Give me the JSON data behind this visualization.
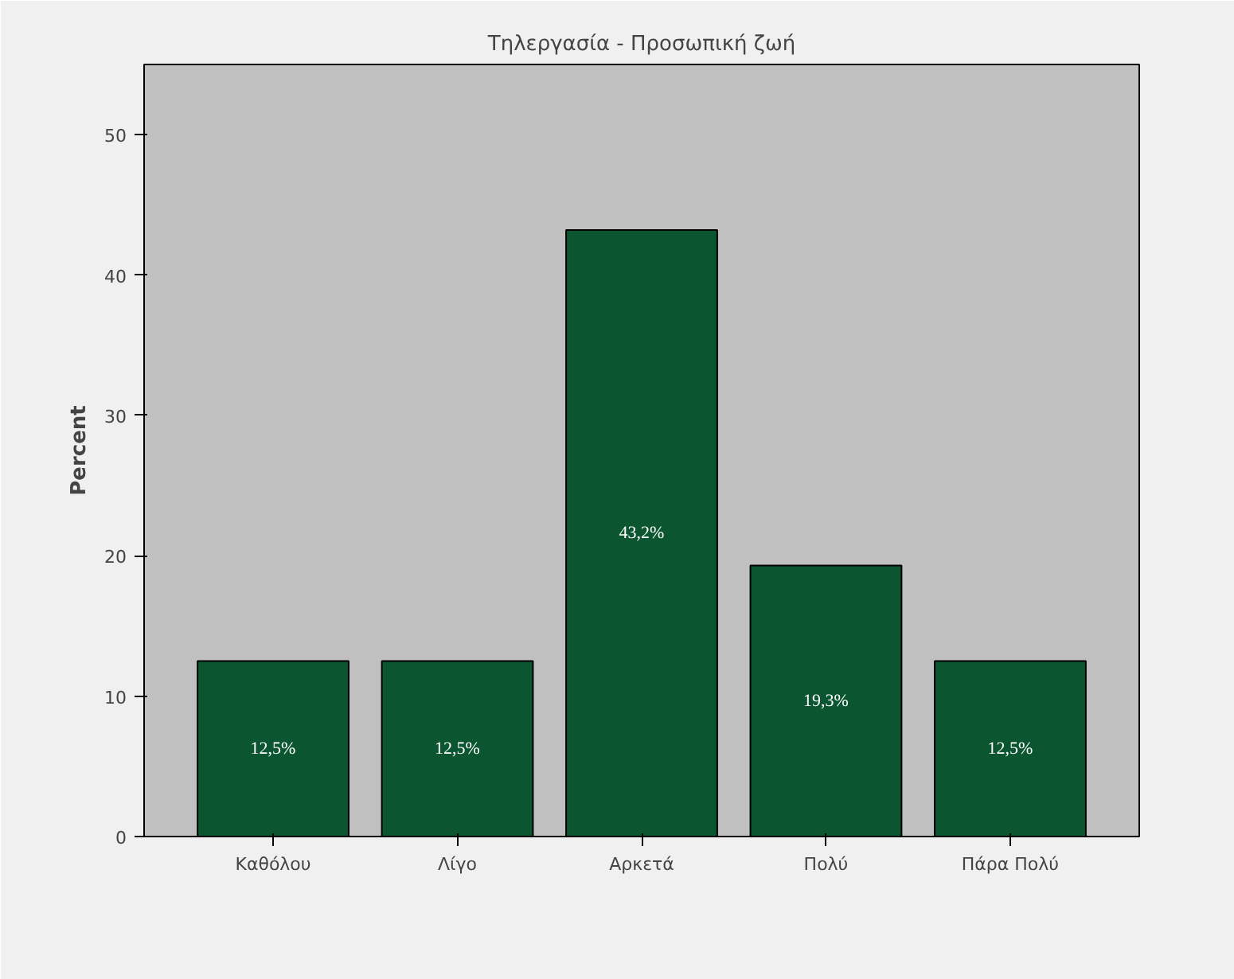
{
  "chart_data": {
    "type": "bar",
    "title": "Τηλεργασία - Προσωπική ζωή",
    "ylabel": "Percent",
    "categories": [
      "Καθόλου",
      "Λίγο",
      "Αρκετά",
      "Πολύ",
      "Πάρα Πολύ"
    ],
    "values": [
      12.5,
      12.5,
      43.2,
      19.3,
      12.5
    ],
    "value_labels": [
      "12,5%",
      "12,5%",
      "43,2%",
      "19,3%",
      "12,5%"
    ],
    "color": "#0b5530",
    "ylim": [
      0,
      55
    ],
    "yticks": [
      0,
      10,
      20,
      30,
      40,
      50
    ],
    "grid": false
  }
}
